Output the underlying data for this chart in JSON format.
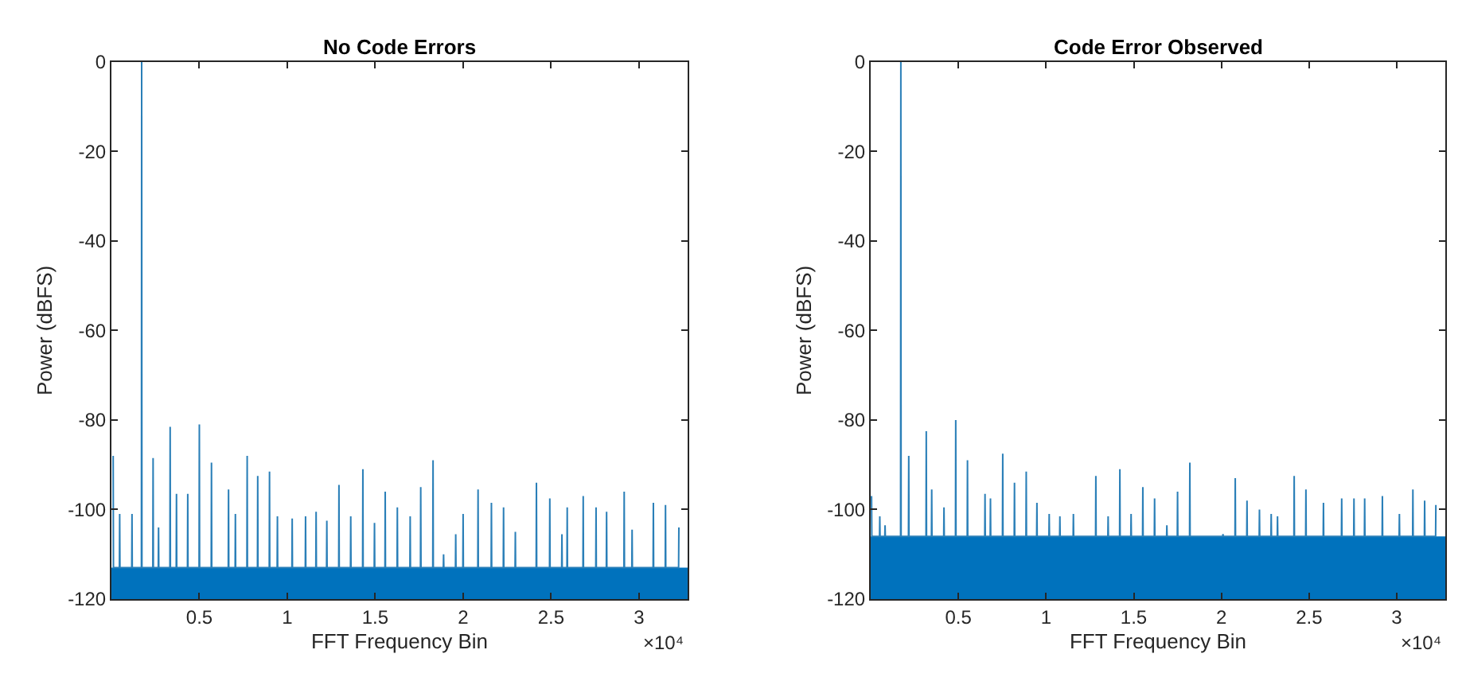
{
  "chart_data": [
    {
      "type": "line",
      "title": "No Code Errors",
      "xlabel": "FFT Frequency Bin",
      "ylabel": "Power (dBFS)",
      "annotations": [
        "×10⁴"
      ],
      "xlim": [
        0,
        3.2768
      ],
      "xticks": [
        0.5,
        1,
        1.5,
        2,
        2.5,
        3
      ],
      "ylim": [
        -120,
        0
      ],
      "yticks": [
        -120,
        -100,
        -80,
        -60,
        -40,
        -20,
        0
      ],
      "bands": [
        {
          "axis": "y",
          "from": -120,
          "to": -113,
          "color": "#0072bd"
        }
      ],
      "series": [
        {
          "color": "#2a7fb8",
          "x": [
            0.01,
            0.0115,
            0.0455,
            0.047,
            0.0485,
            0.1155,
            0.117,
            0.1185,
            0.1705,
            0.172,
            0.1735,
            0.2355,
            0.237,
            0.2385,
            0.2665,
            0.268,
            0.2695,
            0.3325,
            0.334,
            0.3355,
            0.3685,
            0.37,
            0.3715,
            0.4325,
            0.434,
            0.4355,
            0.4985,
            0.5,
            0.5015,
            0.5675,
            0.569,
            0.5705,
            0.6645,
            0.666,
            0.6675,
            0.7035,
            0.705,
            0.7065,
            0.7705,
            0.772,
            0.7735,
            0.8305,
            0.832,
            0.8335,
            0.8975,
            0.899,
            0.9005,
            0.9425,
            0.944,
            0.9455,
            1.0265,
            1.028,
            1.0295,
            1.1025,
            1.104,
            1.1055,
            1.1625,
            1.164,
            1.1655,
            1.2235,
            1.225,
            1.2265,
            1.2925,
            1.294,
            1.2955,
            1.3595,
            1.361,
            1.3625,
            1.4285,
            1.43,
            1.4315,
            1.4945,
            1.496,
            1.4975,
            1.5555,
            1.557,
            1.5585,
            1.6245,
            1.626,
            1.6275,
            1.6975,
            1.699,
            1.7005,
            1.7575,
            1.759,
            1.7605,
            1.8275,
            1.829,
            1.8305,
            1.8875,
            1.889,
            1.8905,
            1.9565,
            1.958,
            1.9595,
            1.9985,
            2.0,
            2.0015,
            2.0835,
            2.085,
            2.0865,
            2.1595,
            2.161,
            2.1625,
            2.2285,
            2.23,
            2.2315,
            2.2955,
            2.297,
            2.2985,
            2.4155,
            2.417,
            2.4185,
            2.4915,
            2.493,
            2.4945,
            2.5605,
            2.562,
            2.5635,
            2.5905,
            2.592,
            2.5935,
            2.6815,
            2.683,
            2.6845,
            2.7545,
            2.756,
            2.7575,
            2.8145,
            2.816,
            2.8175,
            2.9145,
            2.916,
            2.9175,
            2.9595,
            2.961,
            2.9625,
            3.0805,
            3.082,
            3.0835,
            3.1495,
            3.151,
            3.1525,
            3.2255,
            3.227
          ],
          "values": [
            -88,
            -113,
            -113,
            -101,
            -113,
            -113,
            -101,
            -113,
            -113,
            0,
            -113,
            -113,
            -88.5,
            -113,
            -113,
            -104,
            -113,
            -113,
            -81.5,
            -113,
            -113,
            -96.5,
            -113,
            -113,
            -96.5,
            -113,
            -113,
            -81,
            -113,
            -113,
            -89.5,
            -113,
            -113,
            -95.5,
            -113,
            -113,
            -101,
            -113,
            -113,
            -88,
            -113,
            -113,
            -92.5,
            -113,
            -113,
            -91.5,
            -113,
            -113,
            -101.5,
            -113,
            -113,
            -102,
            -113,
            -113,
            -101.5,
            -113,
            -113,
            -100.5,
            -113,
            -113,
            -102.5,
            -113,
            -113,
            -94.5,
            -113,
            -113,
            -101.5,
            -113,
            -113,
            -91,
            -113,
            -113,
            -103,
            -113,
            -113,
            -96,
            -113,
            -113,
            -99.5,
            -113,
            -113,
            -101.5,
            -113,
            -113,
            -95,
            -113,
            -113,
            -89,
            -113,
            -113,
            -110,
            -113,
            -113,
            -105.5,
            -113,
            -113,
            -101,
            -113,
            -113,
            -95.5,
            -113,
            -113,
            -98.5,
            -113,
            -113,
            -99.5,
            -113,
            -113,
            -105,
            -113,
            -113,
            -94,
            -113,
            -113,
            -97.5,
            -113,
            -113,
            -105.5,
            -113,
            -113,
            -99.5,
            -113,
            -113,
            -97,
            -113,
            -113,
            -99.5,
            -113,
            -113,
            -100.5,
            -113,
            -113,
            -96,
            -113,
            -113,
            -104.5,
            -113,
            -113,
            -98.5,
            -113,
            -113,
            -99,
            -113,
            -113,
            -104
          ]
        }
      ]
    },
    {
      "type": "line",
      "title": "Code Error Observed",
      "xlabel": "FFT Frequency Bin",
      "ylabel": "Power (dBFS)",
      "annotations": [
        "×10⁴"
      ],
      "xlim": [
        0,
        3.2768
      ],
      "xticks": [
        0.5,
        1,
        1.5,
        2,
        2.5,
        3
      ],
      "ylim": [
        -120,
        0
      ],
      "yticks": [
        -120,
        -100,
        -80,
        -60,
        -40,
        -20,
        0
      ],
      "bands": [
        {
          "axis": "y",
          "from": -120,
          "to": -106,
          "color": "#0072bd"
        }
      ],
      "series": [
        {
          "color": "#2a7fb8",
          "x": [
            0.005,
            0.0065,
            0.0505,
            0.052,
            0.0535,
            0.0805,
            0.082,
            0.0835,
            0.1705,
            0.172,
            0.1735,
            0.2155,
            0.217,
            0.2185,
            0.3155,
            0.317,
            0.3185,
            0.3465,
            0.348,
            0.3495,
            0.4165,
            0.418,
            0.4195,
            0.4835,
            0.485,
            0.4865,
            0.5505,
            0.552,
            0.5535,
            0.6505,
            0.652,
            0.6535,
            0.6815,
            0.683,
            0.6845,
            0.7515,
            0.753,
            0.7545,
            0.8185,
            0.82,
            0.8215,
            0.8855,
            0.887,
            0.8885,
            0.9465,
            0.948,
            0.9495,
            1.0165,
            1.018,
            1.0195,
            1.0775,
            1.079,
            1.0805,
            1.1545,
            1.156,
            1.1575,
            1.2825,
            1.284,
            1.2855,
            1.3525,
            1.354,
            1.3555,
            1.4195,
            1.421,
            1.4225,
            1.4835,
            1.485,
            1.4865,
            1.5505,
            1.552,
            1.5535,
            1.6175,
            1.619,
            1.6205,
            1.6875,
            1.689,
            1.6905,
            1.7485,
            1.75,
            1.7515,
            1.8185,
            1.82,
            1.8215,
            2.0075,
            2.009,
            2.0105,
            2.0775,
            2.079,
            2.0805,
            2.1445,
            2.146,
            2.1475,
            2.2155,
            2.217,
            2.2185,
            2.2825,
            2.284,
            2.2855,
            2.3185,
            2.32,
            2.3215,
            2.4135,
            2.415,
            2.4165,
            2.4805,
            2.482,
            2.4835,
            2.5805,
            2.582,
            2.5835,
            2.6845,
            2.686,
            2.6875,
            2.7545,
            2.756,
            2.7575,
            2.8155,
            2.817,
            2.8185,
            2.9165,
            2.918,
            2.9195,
            3.0135,
            3.015,
            3.0165,
            3.0905,
            3.092,
            3.0935,
            3.1575,
            3.159,
            3.1605,
            3.2215,
            3.223
          ],
          "values": [
            -97,
            -106,
            -106,
            -101.5,
            -106,
            -106,
            -103.5,
            -106,
            -106,
            0,
            -106,
            -106,
            -88,
            -106,
            -106,
            -82.5,
            -106,
            -106,
            -95.5,
            -106,
            -106,
            -99.5,
            -106,
            -106,
            -80,
            -106,
            -106,
            -89,
            -106,
            -106,
            -96.5,
            -106,
            -106,
            -97.5,
            -106,
            -106,
            -87.5,
            -106,
            -106,
            -94,
            -106,
            -106,
            -91.5,
            -106,
            -106,
            -98.5,
            -106,
            -106,
            -101,
            -106,
            -106,
            -101.5,
            -106,
            -106,
            -101,
            -106,
            -106,
            -92.5,
            -106,
            -106,
            -101.5,
            -106,
            -106,
            -91,
            -106,
            -106,
            -101,
            -106,
            -106,
            -95,
            -106,
            -106,
            -97.5,
            -106,
            -106,
            -103.5,
            -106,
            -106,
            -96,
            -106,
            -106,
            -89.5,
            -106,
            -106,
            -105.5,
            -106,
            -106,
            -93,
            -106,
            -106,
            -98,
            -106,
            -106,
            -100,
            -106,
            -106,
            -101,
            -106,
            -106,
            -101.5,
            -106,
            -106,
            -92.5,
            -106,
            -106,
            -95.5,
            -106,
            -106,
            -98.5,
            -106,
            -106,
            -97.5,
            -106,
            -106,
            -97.5,
            -106,
            -106,
            -97.5,
            -106,
            -106,
            -97,
            -106,
            -106,
            -101,
            -106,
            -106,
            -95.5,
            -106,
            -106,
            -98,
            -106,
            -106,
            -99
          ]
        }
      ]
    }
  ]
}
